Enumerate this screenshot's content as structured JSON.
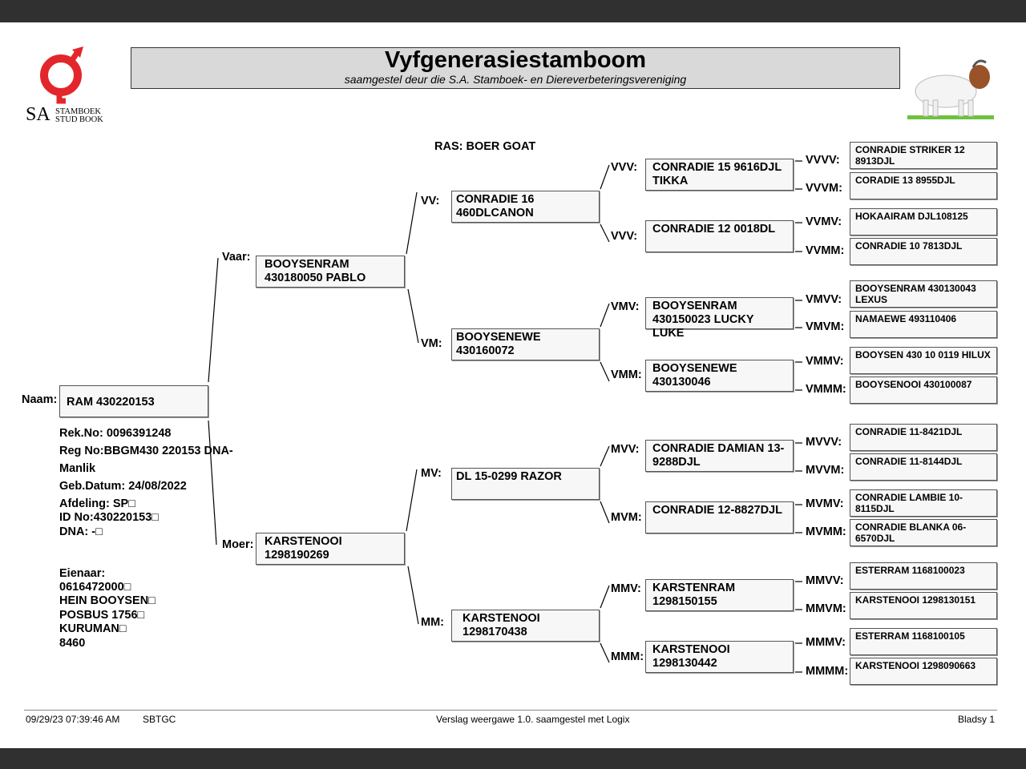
{
  "header": {
    "title": "Vyfgenerasiestamboom",
    "subtitle": "saamgestel deur die S.A. Stamboek- en Diereverbeteringsvereniging",
    "logo_text": [
      "SA",
      "STAMBOEK",
      "STUD BOOK"
    ],
    "logo_color": "#e3262b"
  },
  "breed": "RAS: BOER GOAT",
  "animal": {
    "label": "Naam:",
    "name": "RAM 430220153",
    "rek_no": "Rek.No: 0096391248",
    "reg_no": "Reg No:BBGM430 220153 DNA-",
    "sex": "Manlik",
    "birth_date": "Geb.Datum: 24/08/2022",
    "section": "Afdeling: SP□",
    "id_no": "ID No:430220153□",
    "dna": "DNA: -□"
  },
  "owner": {
    "label": "Eienaar:",
    "lines": [
      "0616472000□",
      "HEIN BOOYSEN□",
      "POSBUS 1756□",
      "KURUMAN□",
      "8460"
    ]
  },
  "gen1": [
    {
      "label": "Vaar:",
      "name": "BOOYSENRAM 430180050 PABLO"
    },
    {
      "label": "Moer:",
      "name": "KARSTENOOI 1298190269"
    }
  ],
  "gen2": [
    {
      "label": "VV:",
      "name": "CONRADIE 16 460DLCANON"
    },
    {
      "label": "VM:",
      "name": "BOOYSENEWE 430160072"
    },
    {
      "label": "MV:",
      "name": "DL 15-0299 RAZOR"
    },
    {
      "label": "MM:",
      "name": "KARSTENOOI 1298170438"
    }
  ],
  "gen3": [
    {
      "label": "VVV:",
      "name": "CONRADIE 15 9616DJL TIKKA"
    },
    {
      "label": "VVV:",
      "name": "CONRADIE 12 0018DL"
    },
    {
      "label": "VMV:",
      "name": "BOOYSENRAM 430150023 LUCKY LUKE"
    },
    {
      "label": "VMM:",
      "name": "BOOYSENEWE 430130046"
    },
    {
      "label": "MVV:",
      "name": "CONRADIE DAMIAN 13-9288DJL"
    },
    {
      "label": "MVM:",
      "name": "CONRADIE 12-8827DJL"
    },
    {
      "label": "MMV:",
      "name": "KARSTENRAM 1298150155"
    },
    {
      "label": "MMM:",
      "name": "KARSTENOOI 1298130442"
    }
  ],
  "gen4": [
    {
      "label": "VVVV:",
      "name": "CONRADIE STRIKER 12 8913DJL"
    },
    {
      "label": "VVVM:",
      "name": "CORADIE 13 8955DJL"
    },
    {
      "label": "VVMV:",
      "name": "HOKAAIRAM DJL108125"
    },
    {
      "label": "VVMM:",
      "name": "CONRADIE 10 7813DJL"
    },
    {
      "label": "VMVV:",
      "name": "BOOYSENRAM 430130043 LEXUS"
    },
    {
      "label": "VMVM:",
      "name": "NAMAEWE 493110406"
    },
    {
      "label": "VMMV:",
      "name": "BOOYSEN 430 10 0119 HILUX"
    },
    {
      "label": "VMMM:",
      "name": "BOOYSENOOI 430100087"
    },
    {
      "label": "MVVV:",
      "name": "CONRADIE 11-8421DJL"
    },
    {
      "label": "MVVM:",
      "name": "CONRADIE 11-8144DJL"
    },
    {
      "label": "MVMV:",
      "name": "CONRADIE LAMBIE 10-8115DJL"
    },
    {
      "label": "MVMM:",
      "name": "CONRADIE BLANKA 06-6570DJL"
    },
    {
      "label": "MMVV:",
      "name": "ESTERRAM 1168100023"
    },
    {
      "label": "MMVM:",
      "name": "KARSTENOOI 1298130151"
    },
    {
      "label": "MMMV:",
      "name": "ESTERRAM 1168100105"
    },
    {
      "label": "MMMM:",
      "name": "KARSTENOOI 1298090663"
    }
  ],
  "footer": {
    "datetime": "09/29/23 07:39:46 AM",
    "code": "SBTGC",
    "version": "Verslag weergawe 1.0. saamgestel met Logix",
    "page": "Bladsy 1"
  }
}
